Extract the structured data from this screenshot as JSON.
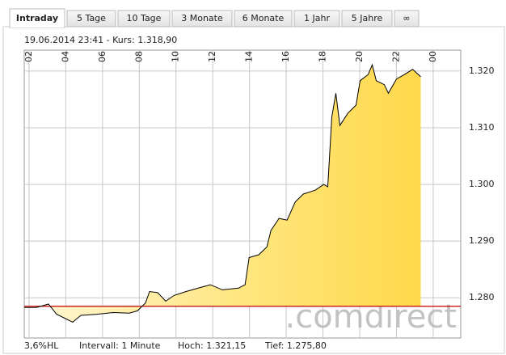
{
  "tabs": [
    "Intraday",
    "5 Tage",
    "10 Tage",
    "3 Monate",
    "6 Monate",
    "1 Jahr",
    "5 Jahre",
    "∞"
  ],
  "active_tab": 0,
  "chart_data": {
    "type": "line",
    "subtitle": "19.06.2014 23:41  -  Kurs: 1.318,90",
    "x": [
      1.74,
      2.4,
      3.06,
      3.5,
      3.94,
      4.38,
      4.82,
      5.7,
      6.58,
      7.46,
      7.9,
      8.34,
      8.56,
      9.0,
      9.44,
      9.89,
      10.55,
      11.43,
      11.87,
      12.53,
      13.41,
      13.76,
      13.98,
      14.51,
      14.95,
      15.17,
      15.61,
      16.05,
      16.49,
      16.93,
      17.59,
      18.04,
      18.26,
      18.48,
      18.7,
      18.92,
      19.36,
      19.8,
      20.02,
      20.46,
      20.68,
      20.9,
      21.34,
      21.56,
      22.0,
      22.44,
      22.88,
      23.32
    ],
    "values": [
      1.2783,
      1.2783,
      1.2789,
      1.2771,
      1.2764,
      1.2757,
      1.2769,
      1.2771,
      1.2774,
      1.2773,
      1.2777,
      1.2791,
      1.2811,
      1.2809,
      1.2794,
      1.2804,
      1.2811,
      1.2819,
      1.2823,
      1.2814,
      1.2817,
      1.2823,
      1.2871,
      1.2876,
      1.289,
      1.2919,
      1.294,
      1.2937,
      1.2969,
      1.2983,
      1.299,
      1.3,
      1.2996,
      1.3119,
      1.3161,
      1.3104,
      1.3126,
      1.314,
      1.3183,
      1.3194,
      1.3211,
      1.3183,
      1.3176,
      1.3161,
      1.3186,
      1.3194,
      1.3203,
      1.319
    ],
    "color": "#000000",
    "reference_line": 1.2785,
    "reference_color": "#c00000",
    "xlim": [
      1.74,
      25.5
    ],
    "xticks": [
      {
        "value": 2,
        "label": "02"
      },
      {
        "value": 4,
        "label": "04"
      },
      {
        "value": 6,
        "label": "06"
      },
      {
        "value": 8,
        "label": "08"
      },
      10,
      12,
      14,
      16,
      18,
      20,
      22,
      {
        "value": 24,
        "label": "00"
      }
    ],
    "ylim": [
      1.2729,
      1.3237
    ],
    "yticks": [
      {
        "value": 1.28,
        "label": "1.280"
      },
      {
        "value": 1.29,
        "label": "1.290"
      },
      {
        "value": 1.3,
        "label": "1.300"
      },
      {
        "value": 1.31,
        "label": "1.310"
      },
      {
        "value": 1.32,
        "label": "1.320"
      }
    ],
    "grid": true,
    "watermark": ".comdirect"
  },
  "footer": [
    "3,6%HL",
    "Intervall: 1 Minute",
    "Hoch: 1.321,15",
    "Tief: 1.275,80"
  ]
}
